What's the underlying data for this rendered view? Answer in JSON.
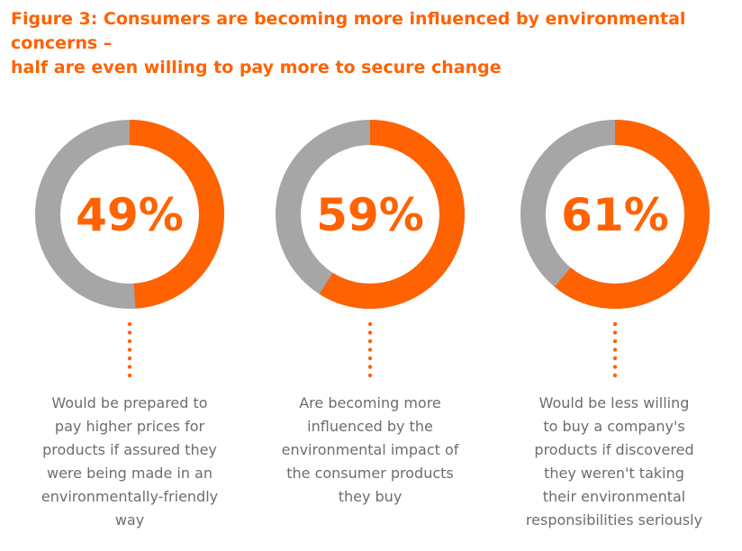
{
  "title": {
    "line1": "Figure 3: Consumers are becoming more influenced by environmental concerns –",
    "line2": "half are even willing to pay more to secure change"
  },
  "colors": {
    "accent": "#ff6200",
    "remainder": "#a6a6a6",
    "text": "#6d6d6d"
  },
  "chart_data": {
    "type": "pie",
    "items": [
      {
        "value": 49,
        "label": "49%",
        "description": [
          "Would be prepared to",
          "pay higher prices for",
          "products if assured they",
          "were being made in an",
          "environmentally-friendly",
          "way"
        ]
      },
      {
        "value": 59,
        "label": "59%",
        "description": [
          "Are becoming more",
          "influenced by the",
          "environmental impact of",
          "the consumer products",
          "they buy"
        ]
      },
      {
        "value": 61,
        "label": "61%",
        "description": [
          "Would be less willing",
          "to buy a company's",
          "products if discovered",
          "they weren't taking",
          "their environmental",
          "responsibilities seriously"
        ]
      }
    ]
  }
}
